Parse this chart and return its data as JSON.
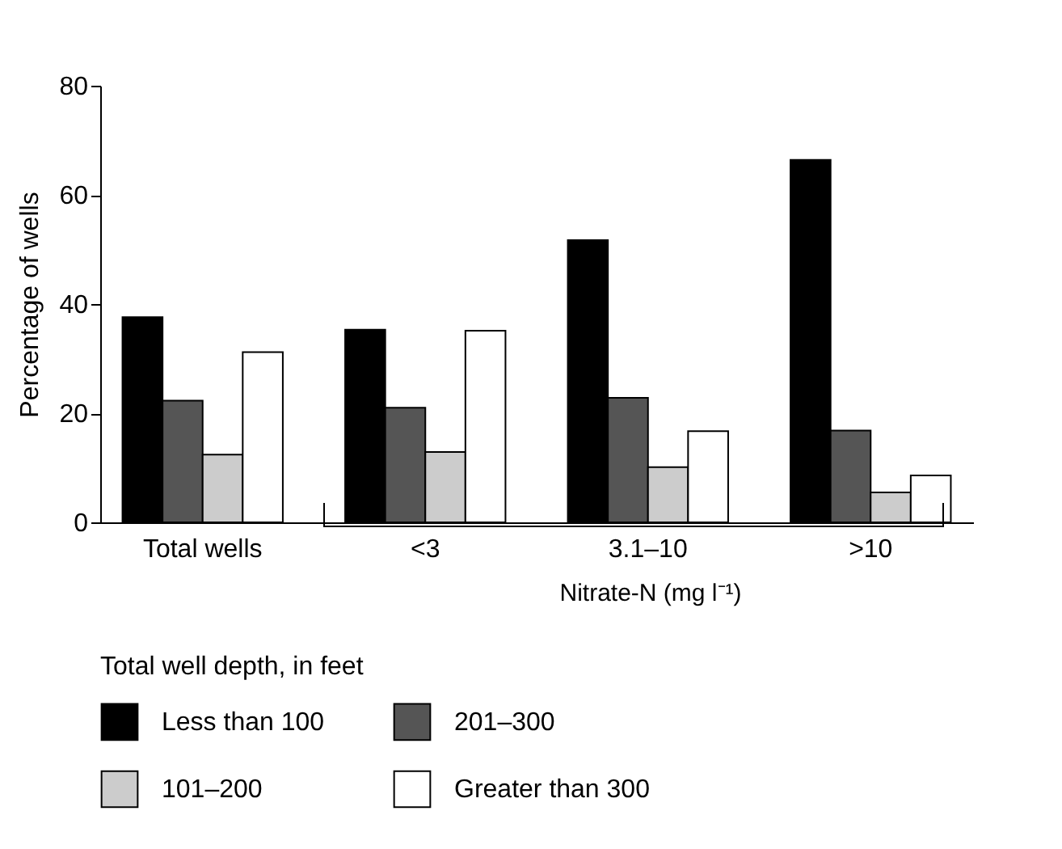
{
  "chart_data": {
    "type": "bar",
    "categories": [
      "Total wells",
      "<3",
      "3.1–10",
      ">10"
    ],
    "xlabel": "Nitrate-N (mg l⁻¹)",
    "ylabel": "Percentage of wells",
    "legend_title": "Total well depth, in feet",
    "legend": "bottom",
    "grid": false,
    "ylim": [
      0,
      80
    ],
    "yticks": [
      0,
      20,
      40,
      60,
      80
    ],
    "series": [
      {
        "name": "Less than 100",
        "color": "#000000",
        "values": [
          37.6,
          35.3,
          51.7,
          66.4
        ]
      },
      {
        "name": "201–300",
        "color": "#555555",
        "values": [
          22.3,
          21.0,
          22.8,
          16.8
        ]
      },
      {
        "name": "101–200",
        "color": "#cccccc",
        "values": [
          12.4,
          12.9,
          10.1,
          5.5
        ]
      },
      {
        "name": "Greater than 300",
        "color": "#ffffff",
        "values": [
          31.2,
          35.1,
          16.7,
          8.6
        ]
      }
    ]
  }
}
